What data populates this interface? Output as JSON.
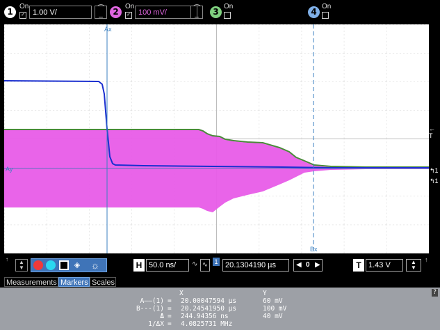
{
  "channels": [
    {
      "num": "1",
      "state": "On",
      "scale": "1.00 V/",
      "color": "#ffffff"
    },
    {
      "num": "2",
      "state": "On",
      "scale": "100 mV/",
      "color": "#e066e0"
    },
    {
      "num": "3",
      "state": "On",
      "color": "#7fd07f"
    },
    {
      "num": "4",
      "state": "On",
      "color": "#7fb0e8"
    }
  ],
  "markers": {
    "ax_label": "Ax",
    "bx_label": "Bx",
    "ay_label": "Ay"
  },
  "right_labels": {
    "trigger": "T",
    "ch1": "1",
    "ch1b": "1"
  },
  "toolbar": {
    "h_tag": "H",
    "timebase": "50.0 ns/",
    "delay_tag": "1",
    "delay": "20.1304190 µs",
    "ref": "0",
    "t_tag": "T",
    "trigger_level": "1.43 V"
  },
  "tabs": [
    {
      "label": "Measurements",
      "active": false
    },
    {
      "label": "Markers",
      "active": true
    },
    {
      "label": "Scales",
      "active": false
    }
  ],
  "panel": {
    "col_x": "X",
    "col_y": "Y",
    "rows": [
      {
        "label": "A——(1)",
        "x": "20.00047594 µs",
        "y": "60 mV"
      },
      {
        "label": "B---(1)",
        "x": "20.24541950 µs",
        "y": "100 mV"
      },
      {
        "label": "Δ",
        "x": "244.94356 ns",
        "y": "40 mV"
      },
      {
        "label": "1/ΔX",
        "x": "4.0825731 MHz",
        "y": ""
      }
    ],
    "help": "?"
  }
}
